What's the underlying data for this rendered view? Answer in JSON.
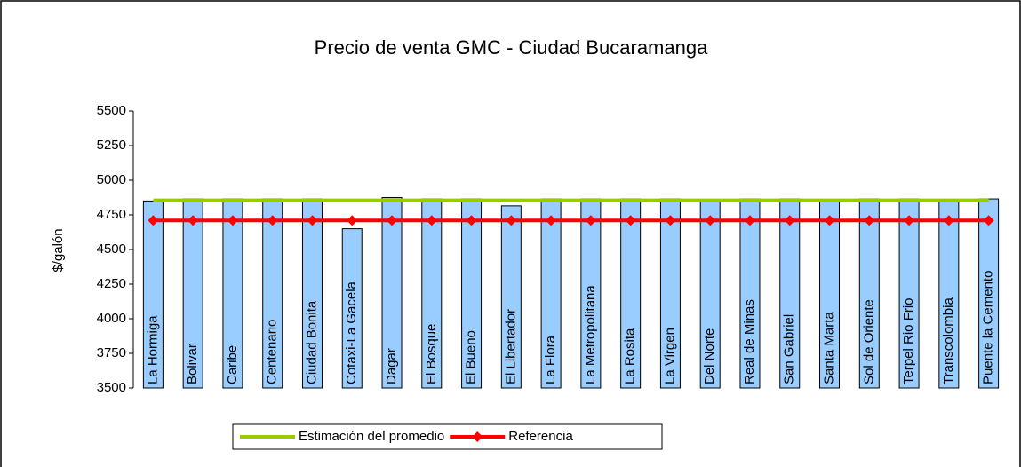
{
  "chart_data": {
    "type": "bar",
    "title": "Precio de venta GMC - Ciudad Bucaramanga",
    "y_label": "$/galón",
    "categories": [
      "La Hormiga",
      "Bolivar",
      "Caribe",
      "Centenario",
      "Ciudad Bonita",
      "Cotaxi-La Gacela",
      "Dagar",
      "El Bosque",
      "El Bueno",
      "El Libertador",
      "La Flora",
      "La Metropolitana",
      "La Rosita",
      "La Virgen",
      "Del Norte",
      "Real de Minas",
      "San Gabriel",
      "Santa Marta",
      "Sol de Oriente",
      "Terpel Rio Frio",
      "Transcolombia",
      "Puente la Cemento"
    ],
    "values": [
      4850,
      4865,
      4865,
      4865,
      4865,
      4650,
      4875,
      4865,
      4865,
      4815,
      4865,
      4865,
      4865,
      4865,
      4862,
      4865,
      4865,
      4862,
      4865,
      4865,
      4860,
      4865
    ],
    "color": "#99ccff",
    "series": [
      {
        "name": "Estimación del promedio",
        "type": "line",
        "color": "#99cc00",
        "marker": false,
        "values": [
          4855,
          4855,
          4855,
          4855,
          4855,
          4855,
          4855,
          4855,
          4855,
          4855,
          4855,
          4855,
          4855,
          4855,
          4855,
          4855,
          4855,
          4855,
          4855,
          4855,
          4855,
          4855
        ]
      },
      {
        "name": "Referencia",
        "type": "line",
        "color": "#ff0000",
        "marker": true,
        "values": [
          4710,
          4710,
          4710,
          4710,
          4710,
          4710,
          4710,
          4710,
          4710,
          4710,
          4710,
          4710,
          4710,
          4710,
          4710,
          4710,
          4710,
          4710,
          4710,
          4710,
          4710,
          4710
        ]
      }
    ],
    "ylim": [
      3500,
      5500
    ],
    "yticks": [
      3500,
      3750,
      4000,
      4250,
      4500,
      4750,
      5000,
      5250,
      5500
    ],
    "grid": false,
    "legend": "bottom"
  }
}
